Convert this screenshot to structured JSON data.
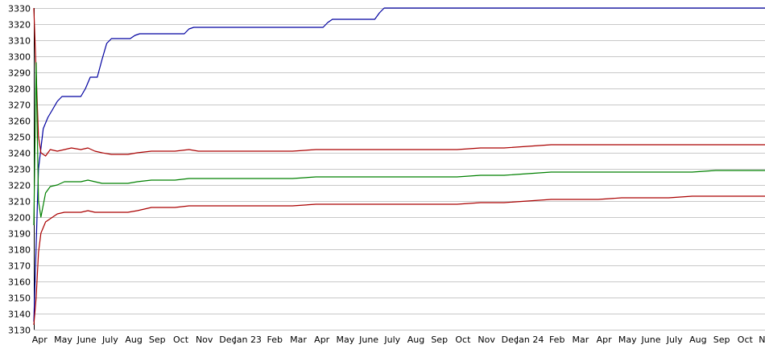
{
  "chart_data": {
    "type": "line",
    "title": "",
    "xlabel": "",
    "ylabel": "",
    "ylim": [
      3130,
      3330
    ],
    "yticks": [
      3130,
      3140,
      3150,
      3160,
      3170,
      3180,
      3190,
      3200,
      3210,
      3220,
      3230,
      3240,
      3250,
      3260,
      3270,
      3280,
      3290,
      3300,
      3310,
      3320,
      3330
    ],
    "xlim": [
      0,
      31
    ],
    "x_tick_labels": [
      {
        "x": 0.25,
        "label": "Apr"
      },
      {
        "x": 1.25,
        "label": "May"
      },
      {
        "x": 2.25,
        "label": "June"
      },
      {
        "x": 3.25,
        "label": "July"
      },
      {
        "x": 4.25,
        "label": "Aug"
      },
      {
        "x": 5.25,
        "label": "Sep"
      },
      {
        "x": 6.25,
        "label": "Oct"
      },
      {
        "x": 7.25,
        "label": "Nov"
      },
      {
        "x": 8.25,
        "label": "Dec"
      },
      {
        "x": 9.1,
        "label": "Jan 23"
      },
      {
        "x": 10.25,
        "label": "Feb"
      },
      {
        "x": 11.25,
        "label": "Mar"
      },
      {
        "x": 12.25,
        "label": "Apr"
      },
      {
        "x": 13.25,
        "label": "May"
      },
      {
        "x": 14.25,
        "label": "June"
      },
      {
        "x": 15.25,
        "label": "July"
      },
      {
        "x": 16.25,
        "label": "Aug"
      },
      {
        "x": 17.25,
        "label": "Sep"
      },
      {
        "x": 18.25,
        "label": "Oct"
      },
      {
        "x": 19.25,
        "label": "Nov"
      },
      {
        "x": 20.25,
        "label": "Dec"
      },
      {
        "x": 21.1,
        "label": "Jan 24"
      },
      {
        "x": 22.25,
        "label": "Feb"
      },
      {
        "x": 23.25,
        "label": "Mar"
      },
      {
        "x": 24.25,
        "label": "Apr"
      },
      {
        "x": 25.25,
        "label": "May"
      },
      {
        "x": 26.25,
        "label": "June"
      },
      {
        "x": 27.25,
        "label": "July"
      },
      {
        "x": 28.25,
        "label": "Aug"
      },
      {
        "x": 29.25,
        "label": "Sep"
      },
      {
        "x": 30.25,
        "label": "Oct"
      },
      {
        "x": 31.2,
        "label": "Nov"
      }
    ],
    "grid": true,
    "series": [
      {
        "color": "#0000a0",
        "points": [
          [
            0,
            3135
          ],
          [
            0.2,
            3230
          ],
          [
            0.4,
            3255
          ],
          [
            0.6,
            3262
          ],
          [
            0.8,
            3267
          ],
          [
            1.0,
            3272
          ],
          [
            1.2,
            3275
          ],
          [
            2.0,
            3275
          ],
          [
            2.2,
            3280
          ],
          [
            2.4,
            3287
          ],
          [
            2.7,
            3287
          ],
          [
            2.9,
            3298
          ],
          [
            3.1,
            3308
          ],
          [
            3.3,
            3311
          ],
          [
            4.1,
            3311
          ],
          [
            4.3,
            3313
          ],
          [
            4.5,
            3314
          ],
          [
            6.4,
            3314
          ],
          [
            6.6,
            3317
          ],
          [
            6.8,
            3318
          ],
          [
            12.3,
            3318
          ],
          [
            12.5,
            3321
          ],
          [
            12.7,
            3323
          ],
          [
            14.5,
            3323
          ],
          [
            14.7,
            3327
          ],
          [
            14.9,
            3330
          ],
          [
            31.2,
            3330
          ]
        ]
      },
      {
        "color": "#aa0000",
        "points": [
          [
            0,
            3330
          ],
          [
            0.1,
            3290
          ],
          [
            0.2,
            3250
          ],
          [
            0.3,
            3240
          ],
          [
            0.5,
            3238
          ],
          [
            0.7,
            3242
          ],
          [
            1.0,
            3241
          ],
          [
            1.3,
            3242
          ],
          [
            1.6,
            3243
          ],
          [
            2.0,
            3242
          ],
          [
            2.3,
            3243
          ],
          [
            2.6,
            3241
          ],
          [
            2.9,
            3240
          ],
          [
            3.3,
            3239
          ],
          [
            4.0,
            3239
          ],
          [
            4.4,
            3240
          ],
          [
            5.0,
            3241
          ],
          [
            6.0,
            3241
          ],
          [
            6.6,
            3242
          ],
          [
            7.0,
            3241
          ],
          [
            8.0,
            3241
          ],
          [
            9.0,
            3241
          ],
          [
            10.0,
            3241
          ],
          [
            11.0,
            3241
          ],
          [
            12.0,
            3242
          ],
          [
            13.0,
            3242
          ],
          [
            14.0,
            3242
          ],
          [
            15.0,
            3242
          ],
          [
            16.0,
            3242
          ],
          [
            17.0,
            3242
          ],
          [
            18.0,
            3242
          ],
          [
            19.0,
            3243
          ],
          [
            20.0,
            3243
          ],
          [
            21.0,
            3244
          ],
          [
            22.0,
            3245
          ],
          [
            23.0,
            3245
          ],
          [
            24.0,
            3245
          ],
          [
            25.0,
            3245
          ],
          [
            26.0,
            3245
          ],
          [
            27.0,
            3245
          ],
          [
            28.0,
            3245
          ],
          [
            29.0,
            3245
          ],
          [
            30.0,
            3245
          ],
          [
            31.2,
            3245
          ]
        ]
      },
      {
        "color": "#008000",
        "points": [
          [
            0,
            3195
          ],
          [
            0.1,
            3296
          ],
          [
            0.2,
            3210
          ],
          [
            0.3,
            3200
          ],
          [
            0.5,
            3215
          ],
          [
            0.7,
            3219
          ],
          [
            1.0,
            3220
          ],
          [
            1.3,
            3222
          ],
          [
            1.6,
            3222
          ],
          [
            2.0,
            3222
          ],
          [
            2.3,
            3223
          ],
          [
            2.6,
            3222
          ],
          [
            2.9,
            3221
          ],
          [
            3.3,
            3221
          ],
          [
            4.0,
            3221
          ],
          [
            4.4,
            3222
          ],
          [
            5.0,
            3223
          ],
          [
            6.0,
            3223
          ],
          [
            6.6,
            3224
          ],
          [
            7.0,
            3224
          ],
          [
            8.0,
            3224
          ],
          [
            9.0,
            3224
          ],
          [
            10.0,
            3224
          ],
          [
            11.0,
            3224
          ],
          [
            12.0,
            3225
          ],
          [
            13.0,
            3225
          ],
          [
            14.0,
            3225
          ],
          [
            15.0,
            3225
          ],
          [
            16.0,
            3225
          ],
          [
            17.0,
            3225
          ],
          [
            18.0,
            3225
          ],
          [
            19.0,
            3226
          ],
          [
            20.0,
            3226
          ],
          [
            21.0,
            3227
          ],
          [
            22.0,
            3228
          ],
          [
            23.0,
            3228
          ],
          [
            24.0,
            3228
          ],
          [
            25.0,
            3228
          ],
          [
            26.0,
            3228
          ],
          [
            27.0,
            3228
          ],
          [
            28.0,
            3228
          ],
          [
            29.0,
            3229
          ],
          [
            30.0,
            3229
          ],
          [
            31.2,
            3229
          ]
        ]
      },
      {
        "color": "#aa0000",
        "points": [
          [
            0,
            3133
          ],
          [
            0.1,
            3150
          ],
          [
            0.2,
            3178
          ],
          [
            0.3,
            3190
          ],
          [
            0.5,
            3197
          ],
          [
            0.7,
            3199
          ],
          [
            1.0,
            3202
          ],
          [
            1.3,
            3203
          ],
          [
            1.6,
            3203
          ],
          [
            2.0,
            3203
          ],
          [
            2.3,
            3204
          ],
          [
            2.6,
            3203
          ],
          [
            2.9,
            3203
          ],
          [
            3.3,
            3203
          ],
          [
            4.0,
            3203
          ],
          [
            4.4,
            3204
          ],
          [
            5.0,
            3206
          ],
          [
            6.0,
            3206
          ],
          [
            6.6,
            3207
          ],
          [
            7.0,
            3207
          ],
          [
            8.0,
            3207
          ],
          [
            9.0,
            3207
          ],
          [
            10.0,
            3207
          ],
          [
            11.0,
            3207
          ],
          [
            12.0,
            3208
          ],
          [
            13.0,
            3208
          ],
          [
            14.0,
            3208
          ],
          [
            15.0,
            3208
          ],
          [
            16.0,
            3208
          ],
          [
            17.0,
            3208
          ],
          [
            18.0,
            3208
          ],
          [
            19.0,
            3209
          ],
          [
            20.0,
            3209
          ],
          [
            21.0,
            3210
          ],
          [
            22.0,
            3211
          ],
          [
            23.0,
            3211
          ],
          [
            24.0,
            3211
          ],
          [
            25.0,
            3212
          ],
          [
            26.0,
            3212
          ],
          [
            27.0,
            3212
          ],
          [
            28.0,
            3213
          ],
          [
            29.0,
            3213
          ],
          [
            30.0,
            3213
          ],
          [
            31.2,
            3213
          ]
        ]
      }
    ]
  }
}
